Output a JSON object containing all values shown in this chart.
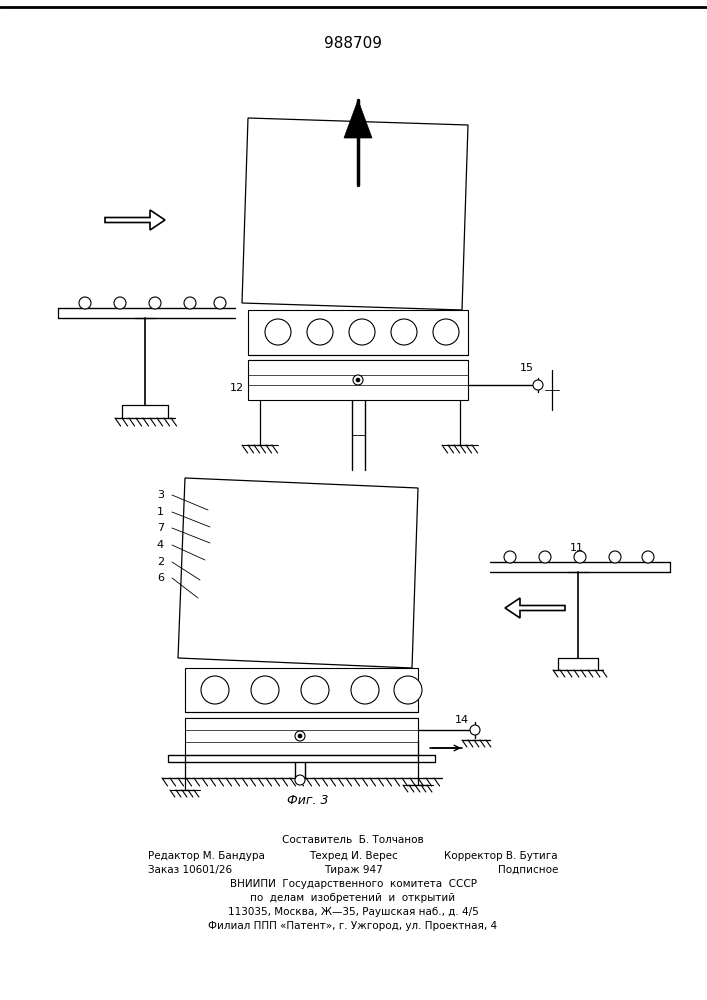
{
  "title": "988709",
  "fig_label": "Фиг. 3",
  "bg_color": "#ffffff",
  "line_color": "#000000",
  "title_fontsize": 11,
  "top_border": true,
  "footer": {
    "line0": "Составитель  Б. Толчанов",
    "line1_left": "Редактор М. Бандура",
    "line1_mid": "Техред И. Верес",
    "line1_right": "Корректор В. Бутига",
    "line2_left": "Заказ 10601/26",
    "line2_mid": "Тираж 947",
    "line2_right": "Подписное",
    "line3": "ВНИИПИ  Государственного  комитета  СССР",
    "line4": "по  делам  изобретений  и  открытий",
    "line5": "113035, Москва, Ж—35, Раушская наб., д. 4/5",
    "line6": "Филиал ППП «Патент», г. Ужгород, ул. Проектная, 4"
  }
}
